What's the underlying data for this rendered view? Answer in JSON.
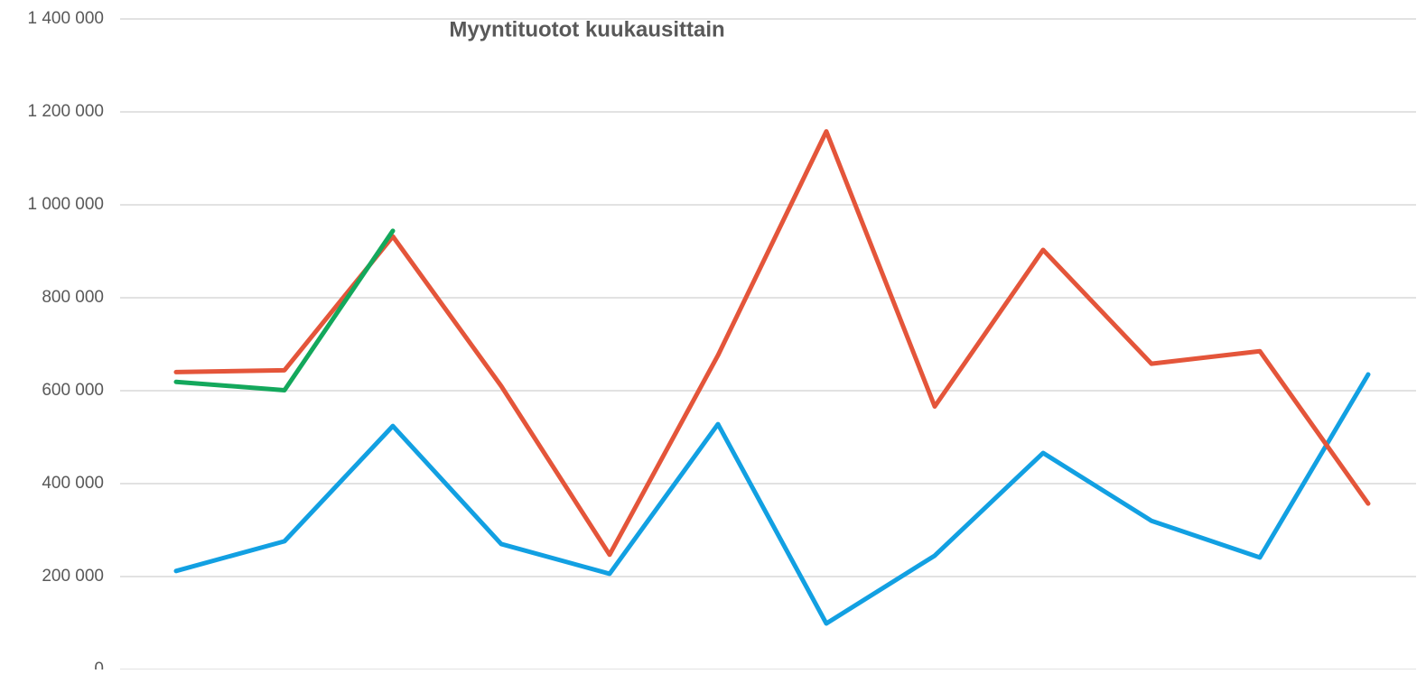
{
  "chart_data": {
    "type": "line",
    "title": "Myyntituotot kuukausittain",
    "categories": [
      null,
      null,
      null,
      null,
      null,
      null,
      null,
      null,
      null,
      null,
      null,
      null
    ],
    "series": [
      {
        "color": "#12a0e2",
        "values": [
          212000,
          276000,
          524000,
          270000,
          206000,
          528000,
          99000,
          245000,
          466000,
          320000,
          241000,
          635000
        ]
      },
      {
        "color": "#e4553a",
        "values": [
          640000,
          644000,
          932000,
          610000,
          247000,
          676000,
          1158000,
          566000,
          903000,
          658000,
          685000,
          357000
        ]
      },
      {
        "color": "#13a85c",
        "values": [
          619000,
          601000,
          944000,
          null,
          null,
          null,
          null,
          null,
          null,
          null,
          null,
          null
        ]
      }
    ],
    "ylim": [
      0,
      1400000
    ],
    "yticks": [
      0,
      {
        "value": 200000,
        "label": "200 000"
      },
      {
        "value": 400000,
        "label": "400 000"
      },
      {
        "value": 600000,
        "label": "600 000"
      },
      {
        "value": 800000,
        "label": "800 000"
      },
      {
        "value": 1000000,
        "label": "1 000 000"
      },
      {
        "value": 1200000,
        "label": "1 200 000"
      },
      {
        "value": 1400000,
        "label": "1 400 000"
      }
    ],
    "grid": true
  }
}
